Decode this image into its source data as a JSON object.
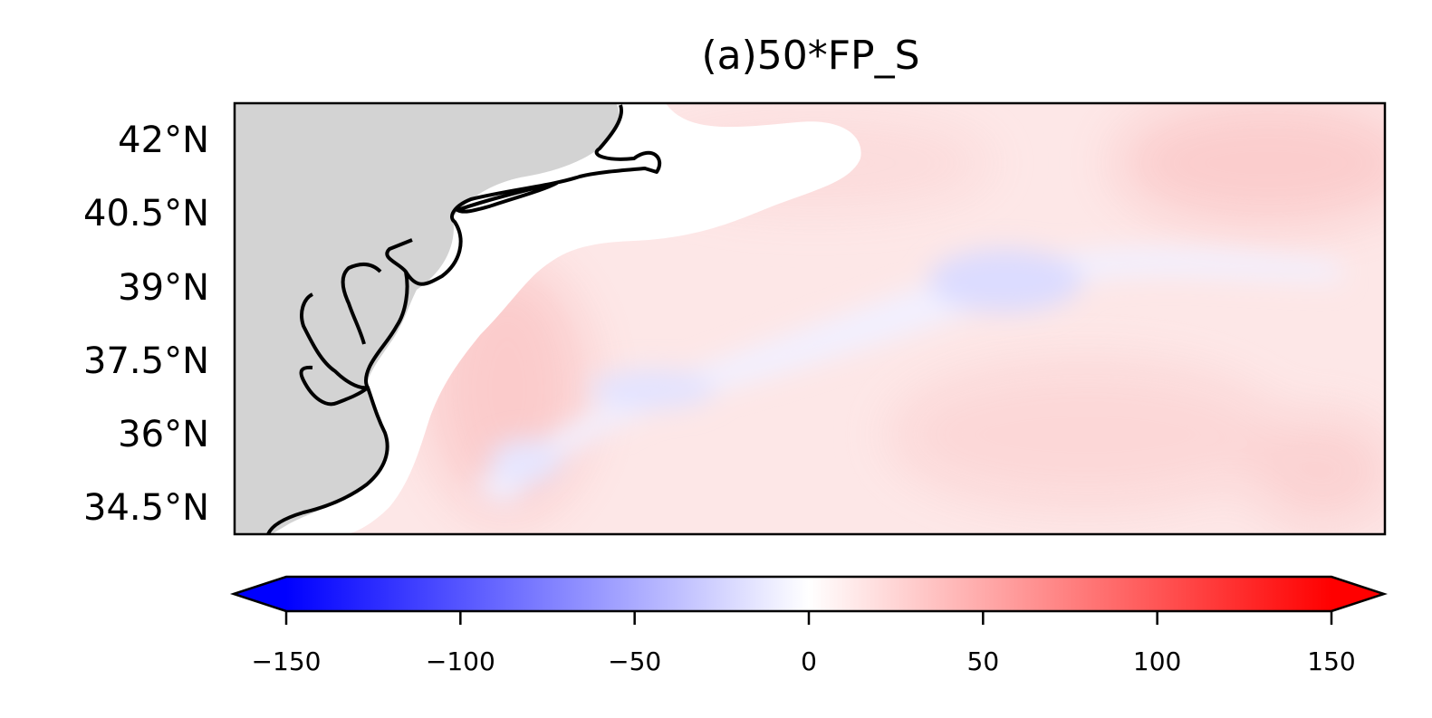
{
  "chart_data": {
    "type": "heatmap",
    "title": "(a)50*FP_S",
    "projection": "lat-lon map, US Mid-Atlantic coast",
    "yticks": [
      "42°N",
      "40.5°N",
      "39°N",
      "37.5°N",
      "36°N",
      "34.5°N"
    ],
    "ytick_values": [
      42,
      40.5,
      39,
      37.5,
      36,
      34.5
    ],
    "ylim": [
      34.0,
      42.8
    ],
    "colorbar": {
      "colormap": "bwr",
      "range": [
        -150,
        150
      ],
      "extend": "both",
      "ticks": [
        "−150",
        "−100",
        "−50",
        "0",
        "50",
        "100",
        "150"
      ],
      "tick_values": [
        -150,
        -100,
        -50,
        0,
        50,
        100,
        150
      ]
    },
    "colors": {
      "land": "#d3d3d3",
      "coastline": "#000000",
      "low": "#0000ff",
      "mid": "#ffffff",
      "high": "#ff0000"
    },
    "field_description_values": {
      "offshore_typical": 20,
      "negative_band_min": -30,
      "shelf_masked": "white (no data)"
    }
  }
}
